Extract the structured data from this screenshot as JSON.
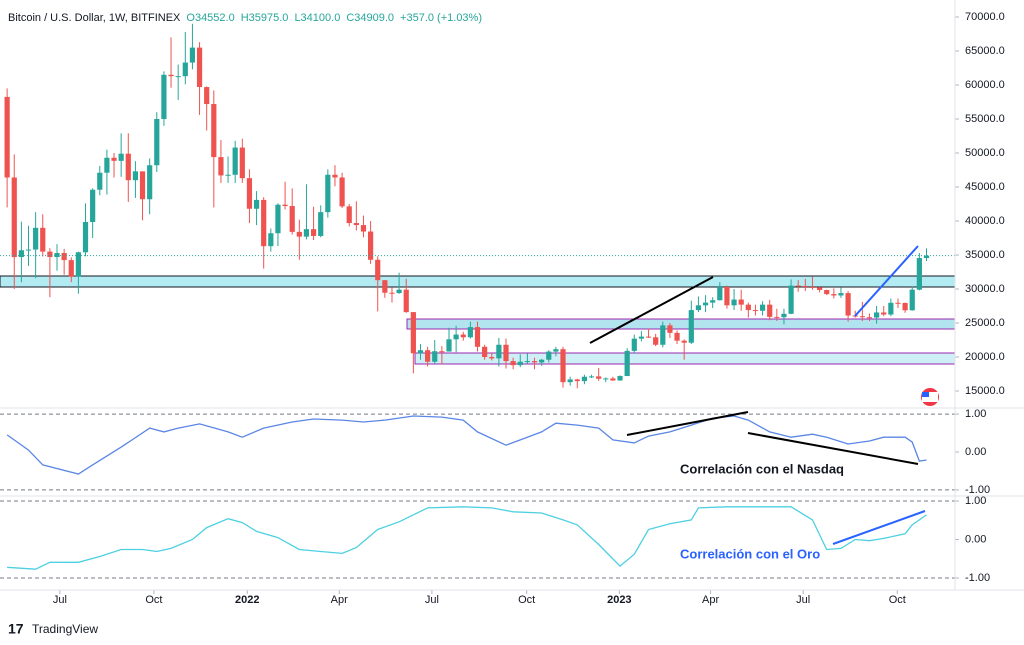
{
  "chart_data": [
    {
      "type": "candlestick",
      "title": "Bitcoin / U.S. Dollar, 1W, BITFINEX",
      "legend_values": [
        "O34552.0",
        "H35975.0",
        "L34100.0",
        "C34909.0",
        "+357.0 (+1.03%)"
      ],
      "up_color": "#26a69a",
      "down_color": "#ef5350",
      "xlim": [
        -1,
        133
      ],
      "xticks": [
        {
          "value": 7.4,
          "label": "Jul"
        },
        {
          "value": 20.6,
          "label": "Oct"
        },
        {
          "value": 33.7,
          "label": "2022"
        },
        {
          "value": 46.6,
          "label": "Apr"
        },
        {
          "value": 59.6,
          "label": "Jul"
        },
        {
          "value": 72.9,
          "label": "Oct"
        },
        {
          "value": 85.9,
          "label": "2023"
        },
        {
          "value": 98.7,
          "label": "Apr"
        },
        {
          "value": 111.7,
          "label": "Jul"
        },
        {
          "value": 124.9,
          "label": "Oct"
        }
      ],
      "ylim": [
        12500,
        72500
      ],
      "yticks": [
        {
          "value": 15000,
          "label": "15000.0"
        },
        {
          "value": 20000,
          "label": "20000.0"
        },
        {
          "value": 25000,
          "label": "25000.0"
        },
        {
          "value": 30000,
          "label": "30000.0"
        },
        {
          "value": 35000,
          "label": "35000.0"
        },
        {
          "value": 40000,
          "label": "40000.0"
        },
        {
          "value": 45000,
          "label": "45000.0"
        },
        {
          "value": 50000,
          "label": "50000.0"
        },
        {
          "value": 55000,
          "label": "55000.0"
        },
        {
          "value": 60000,
          "label": "60000.0"
        },
        {
          "value": 65000,
          "label": "65000.0"
        },
        {
          "value": 70000,
          "label": "70000.0"
        }
      ],
      "ohlc": [
        [
          58250,
          59500,
          42000,
          46400
        ],
        [
          46400,
          49800,
          30000,
          34700
        ],
        [
          34700,
          39900,
          31000,
          35700
        ],
        [
          35700,
          39300,
          33400,
          35800
        ],
        [
          35800,
          41300,
          31600,
          39000
        ],
        [
          39000,
          41000,
          34800,
          35500
        ],
        [
          35500,
          36000,
          28800,
          34700
        ],
        [
          34700,
          36600,
          32700,
          35300
        ],
        [
          35300,
          35900,
          32100,
          34250
        ],
        [
          34250,
          34650,
          31000,
          31800
        ],
        [
          31800,
          35500,
          29300,
          35400
        ],
        [
          35400,
          42600,
          34800,
          39850
        ],
        [
          39850,
          44800,
          37500,
          44600
        ],
        [
          44600,
          48100,
          43800,
          47100
        ],
        [
          47100,
          50500,
          43900,
          49300
        ],
        [
          49300,
          50000,
          46400,
          48850
        ],
        [
          48850,
          52900,
          46500,
          49900
        ],
        [
          49900,
          52900,
          42800,
          46000
        ],
        [
          46000,
          48800,
          43400,
          47300
        ],
        [
          47300,
          47300,
          40100,
          43200
        ],
        [
          43200,
          49200,
          41000,
          48200
        ],
        [
          48200,
          56000,
          47200,
          55000
        ],
        [
          55000,
          62000,
          54000,
          61500
        ],
        [
          61500,
          67000,
          59600,
          61300
        ],
        [
          61300,
          63000,
          57800,
          61300
        ],
        [
          61300,
          67800,
          60100,
          63300
        ],
        [
          63300,
          69000,
          62300,
          65500
        ],
        [
          65500,
          66300,
          55600,
          59700
        ],
        [
          59700,
          59800,
          53300,
          57200
        ],
        [
          57200,
          59200,
          42000,
          49400
        ],
        [
          49400,
          51900,
          45600,
          46700
        ],
        [
          46700,
          49500,
          45600,
          46800
        ],
        [
          46800,
          51800,
          45600,
          50800
        ],
        [
          50800,
          52100,
          45600,
          46300
        ],
        [
          46300,
          47600,
          39700,
          41800
        ],
        [
          41800,
          44400,
          39400,
          43100
        ],
        [
          43100,
          43500,
          33000,
          36300
        ],
        [
          36300,
          38900,
          35500,
          38200
        ],
        [
          38200,
          42600,
          36300,
          42400
        ],
        [
          42400,
          45800,
          41700,
          42200
        ],
        [
          42200,
          44800,
          38000,
          38400
        ],
        [
          38400,
          40200,
          34300,
          37700
        ],
        [
          37700,
          45400,
          37300,
          38800
        ],
        [
          38800,
          42100,
          37200,
          37800
        ],
        [
          37800,
          42300,
          37600,
          41300
        ],
        [
          41300,
          47600,
          40500,
          46800
        ],
        [
          46800,
          48200,
          45100,
          46400
        ],
        [
          46400,
          47100,
          41900,
          42150
        ],
        [
          42150,
          42500,
          39200,
          39700
        ],
        [
          39700,
          42900,
          38600,
          39400
        ],
        [
          39400,
          40800,
          37600,
          38450
        ],
        [
          38450,
          40000,
          33700,
          34300
        ],
        [
          34300,
          34800,
          26700,
          31300
        ],
        [
          31300,
          31300,
          28700,
          29450
        ],
        [
          29450,
          30200,
          28000,
          29400
        ],
        [
          29400,
          32400,
          29300,
          29900
        ],
        [
          29900,
          31500,
          26500,
          26600
        ],
        [
          26600,
          26600,
          17600,
          20550
        ],
        [
          20550,
          21900,
          19600,
          21000
        ],
        [
          21000,
          21500,
          18600,
          19300
        ],
        [
          19300,
          22500,
          19000,
          20850
        ],
        [
          20850,
          21600,
          18900,
          20800
        ],
        [
          20800,
          24300,
          20800,
          22600
        ],
        [
          22600,
          24600,
          20700,
          23300
        ],
        [
          23300,
          23700,
          22400,
          22900
        ],
        [
          22900,
          25200,
          22700,
          24400
        ],
        [
          24400,
          25200,
          20800,
          21500
        ],
        [
          21500,
          21800,
          19600,
          20000
        ],
        [
          20000,
          20600,
          19500,
          19800
        ],
        [
          19800,
          22800,
          18600,
          21800
        ],
        [
          21800,
          22700,
          18300,
          19400
        ],
        [
          19400,
          19900,
          18200,
          18800
        ],
        [
          18800,
          20400,
          18500,
          19300
        ],
        [
          19300,
          20500,
          19000,
          19400
        ],
        [
          19400,
          19900,
          18200,
          19200
        ],
        [
          19200,
          19700,
          18700,
          19600
        ],
        [
          19600,
          21000,
          19200,
          20800
        ],
        [
          20800,
          21500,
          20100,
          21150
        ],
        [
          21150,
          21500,
          15500,
          16300
        ],
        [
          16300,
          17100,
          15800,
          16700
        ],
        [
          16700,
          16800,
          15400,
          16450
        ],
        [
          16450,
          17400,
          16000,
          17100
        ],
        [
          17100,
          17400,
          16900,
          17150
        ],
        [
          17150,
          18400,
          16500,
          16800
        ],
        [
          16800,
          17000,
          16300,
          16850
        ],
        [
          16850,
          17100,
          16500,
          16550
        ],
        [
          16550,
          17300,
          16500,
          17200
        ],
        [
          17200,
          21300,
          17200,
          20900
        ],
        [
          20900,
          23300,
          20500,
          22700
        ],
        [
          22700,
          23800,
          22300,
          23000
        ],
        [
          23000,
          24200,
          22800,
          22900
        ],
        [
          22900,
          23400,
          21600,
          21800
        ],
        [
          21800,
          25200,
          21400,
          24650
        ],
        [
          24650,
          25000,
          22800,
          23550
        ],
        [
          23550,
          23900,
          21900,
          22400
        ],
        [
          22400,
          22600,
          19600,
          22100
        ],
        [
          22100,
          28300,
          21900,
          26900
        ],
        [
          26900,
          28900,
          26600,
          27600
        ],
        [
          27600,
          29100,
          26600,
          28000
        ],
        [
          28000,
          28800,
          27200,
          28350
        ],
        [
          28350,
          31000,
          28300,
          30300
        ],
        [
          30300,
          30500,
          27100,
          27600
        ],
        [
          27600,
          30000,
          26900,
          28450
        ],
        [
          28450,
          29900,
          26800,
          27700
        ],
        [
          27700,
          28000,
          25800,
          26900
        ],
        [
          26900,
          27700,
          26100,
          26800
        ],
        [
          26800,
          28200,
          26100,
          27700
        ],
        [
          27700,
          28400,
          25400,
          25900
        ],
        [
          25900,
          27100,
          25300,
          25850
        ],
        [
          25850,
          27100,
          24800,
          26350
        ],
        [
          26350,
          31400,
          26300,
          30500
        ],
        [
          30500,
          31300,
          29600,
          30450
        ],
        [
          30450,
          31500,
          29700,
          30300
        ],
        [
          30300,
          31800,
          29900,
          30250
        ],
        [
          30250,
          30300,
          29500,
          29850
        ],
        [
          29850,
          29900,
          29100,
          29250
        ],
        [
          29250,
          30100,
          28600,
          29050
        ],
        [
          29050,
          30200,
          28700,
          29400
        ],
        [
          29400,
          29700,
          25200,
          26100
        ],
        [
          26100,
          26800,
          25800,
          26000
        ],
        [
          26000,
          28100,
          25300,
          25850
        ],
        [
          25850,
          26400,
          25300,
          25800
        ],
        [
          25800,
          27500,
          24900,
          26550
        ],
        [
          26550,
          27500,
          26000,
          26250
        ],
        [
          26250,
          28600,
          26000,
          27970
        ],
        [
          27970,
          28600,
          27200,
          27950
        ],
        [
          27950,
          28000,
          26500,
          26870
        ],
        [
          26870,
          30400,
          26800,
          29900
        ],
        [
          29900,
          35300,
          29800,
          34552
        ],
        [
          34552,
          35975,
          34100,
          34909
        ]
      ]
    },
    {
      "type": "line",
      "annotation": "Correlación con el Nasdaq",
      "color": "#5b86e5",
      "annotation_color": "#131722",
      "ylim": [
        -1.16,
        1.16
      ],
      "yticks": [
        {
          "value": -1,
          "label": "-1.00"
        },
        {
          "value": 0,
          "label": "0.00"
        },
        {
          "value": 1,
          "label": "1.00"
        }
      ],
      "x": [
        0,
        3,
        5,
        10,
        12,
        16,
        20,
        22,
        24,
        27,
        31,
        33,
        36,
        40,
        43,
        47,
        50,
        53,
        57,
        61,
        64,
        66,
        70,
        72,
        75,
        77,
        80,
        83,
        85,
        88,
        90,
        93,
        96,
        99,
        102,
        104,
        107,
        110,
        113,
        115,
        118,
        121,
        123,
        126,
        127,
        128,
        129
      ],
      "values": [
        0.45,
        0.05,
        -0.34,
        -0.58,
        -0.34,
        0.13,
        0.63,
        0.53,
        0.63,
        0.74,
        0.53,
        0.39,
        0.63,
        0.79,
        0.87,
        0.84,
        0.79,
        0.84,
        0.95,
        0.92,
        0.84,
        0.53,
        0.18,
        0.32,
        0.53,
        0.76,
        0.71,
        0.63,
        0.32,
        0.24,
        0.42,
        0.53,
        0.71,
        0.89,
        0.95,
        0.84,
        0.53,
        0.39,
        0.47,
        0.39,
        0.21,
        0.29,
        0.39,
        0.39,
        0.26,
        -0.24,
        -0.21
      ]
    },
    {
      "type": "line",
      "annotation": "Correlación con el Oro",
      "color": "#4dd0e1",
      "annotation_color": "#2962ff",
      "ylim": [
        -1.31,
        1.13
      ],
      "yticks": [
        {
          "value": -1,
          "label": "-1.00"
        },
        {
          "value": 0,
          "label": "0.00"
        },
        {
          "value": 1,
          "label": "1.00"
        }
      ],
      "x": [
        0,
        4,
        6,
        10,
        13,
        16,
        19,
        21,
        23,
        26,
        28,
        31,
        33,
        35,
        38,
        41,
        44,
        47,
        49,
        52,
        55,
        59,
        64,
        68,
        71,
        75,
        78,
        80,
        83,
        86,
        88,
        90,
        93,
        96,
        97,
        101,
        106,
        110,
        113,
        115,
        117,
        119,
        121,
        123,
        126,
        127,
        129
      ],
      "values": [
        -0.72,
        -0.77,
        -0.59,
        -0.59,
        -0.44,
        -0.26,
        -0.26,
        -0.31,
        -0.23,
        0,
        0.31,
        0.54,
        0.44,
        0.21,
        0.05,
        -0.26,
        -0.31,
        -0.36,
        -0.21,
        0.26,
        0.46,
        0.82,
        0.85,
        0.82,
        0.72,
        0.69,
        0.51,
        0.38,
        -0.13,
        -0.69,
        -0.38,
        0.26,
        0.41,
        0.51,
        0.82,
        0.85,
        0.85,
        0.85,
        0.51,
        -0.26,
        -0.23,
        0,
        -0.03,
        0.03,
        0.15,
        0.38,
        0.64
      ]
    }
  ],
  "logo": "TradingView"
}
